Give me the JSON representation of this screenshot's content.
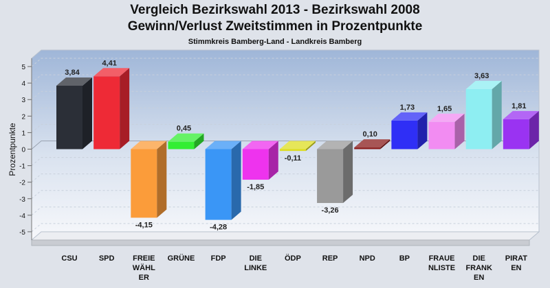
{
  "header": {
    "title_line1": "Vergleich Bezirkswahl 2013 - Bezirkswahl 2008",
    "title_line2": "Gewinn/Verlust Zweitstimmen in Prozentpunkte",
    "subtitle": "Stimmkreis Bamberg-Land - Landkreis Bamberg"
  },
  "chart_data": {
    "type": "bar",
    "title": "Vergleich Bezirkswahl 2013 - Bezirkswahl 2008 / Gewinn/Verlust Zweitstimmen in Prozentpunkte",
    "subtitle": "Stimmkreis Bamberg-Land - Landkreis Bamberg",
    "xlabel": "",
    "ylabel": "Prozentpunkte",
    "ylim": [
      -5.5,
      5.5
    ],
    "yticks": [
      5,
      4,
      3,
      2,
      1,
      0,
      -1,
      -2,
      -3,
      -4,
      -5
    ],
    "ytick_labels": [
      "5",
      "4",
      "3",
      "2",
      "1",
      "0",
      "-1",
      "-2",
      "-3",
      "-4",
      "-5"
    ],
    "grid": true,
    "categories": [
      [
        "CSU"
      ],
      [
        "SPD"
      ],
      [
        "FREIE",
        "WÄHL",
        "ER"
      ],
      [
        "GRÜNE"
      ],
      [
        "FDP"
      ],
      [
        "DIE",
        "LINKE"
      ],
      [
        "ÖDP"
      ],
      [
        "REP"
      ],
      [
        "NPD"
      ],
      [
        "BP"
      ],
      [
        "FRAUE",
        "NLISTE"
      ],
      [
        "DIE",
        "FRANK",
        "EN"
      ],
      [
        "PIRAT",
        "EN"
      ]
    ],
    "values": [
      3.84,
      4.41,
      -4.15,
      0.45,
      -4.28,
      -1.85,
      -0.11,
      -3.26,
      0.1,
      1.73,
      1.65,
      3.63,
      1.81
    ],
    "value_labels": [
      "3,84",
      "4,41",
      "-4,15",
      "0,45",
      "-4,28",
      "-1,85",
      "-0,11",
      "-3,26",
      "0,10",
      "1,73",
      "1,65",
      "3,63",
      "1,81"
    ],
    "colors": [
      "#2b2f37",
      "#ee2a36",
      "#fb9c3a",
      "#33ee33",
      "#3a96f6",
      "#ee33ee",
      "#dddd22",
      "#9a9a9a",
      "#8a1c1c",
      "#2f2ff6",
      "#f28cf2",
      "#8eeef2",
      "#9a33f2"
    ]
  }
}
